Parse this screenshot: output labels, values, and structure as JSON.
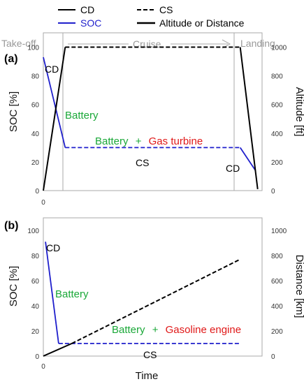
{
  "legend": {
    "cd": "CD",
    "cs": "CS",
    "soc": "SOC",
    "alt": "Altitude or Distance"
  },
  "phases": {
    "takeoff": "Take-off",
    "cruise": "Cruise",
    "landing": "Landing"
  },
  "colors": {
    "soc": "#1f1fcc",
    "altitude": "#000000",
    "battery_text": "#1aa838",
    "fuel_text": "#e01818",
    "phase_text": "#999999"
  },
  "chart_data": [
    {
      "panel": "(a)",
      "type": "line",
      "xlabel": "",
      "ylabel": "SOC [%]",
      "y2label": "Altitude [ft]",
      "xticks": [
        "0"
      ],
      "ylim": [
        0,
        110
      ],
      "yticks": [
        0,
        20,
        40,
        60,
        80,
        100
      ],
      "y2lim": [
        0,
        1100
      ],
      "y2ticks": [
        0,
        200,
        400,
        600,
        800,
        1000
      ],
      "grid": false,
      "series": [
        {
          "name": "SOC",
          "axis": "left",
          "style": "solid",
          "color": "#1f1fcc",
          "x": [
            0.0,
            0.1
          ],
          "y": [
            93,
            30
          ]
        },
        {
          "name": "SOC",
          "axis": "left",
          "style": "dashed",
          "color": "#1f1fcc",
          "x": [
            0.1,
            0.9
          ],
          "y": [
            30,
            30
          ]
        },
        {
          "name": "SOC",
          "axis": "left",
          "style": "solid",
          "color": "#1f1fcc",
          "x": [
            0.9,
            0.97
          ],
          "y": [
            30,
            14
          ]
        },
        {
          "name": "Altitude or Distance",
          "axis": "right",
          "style": "solid",
          "color": "#000000",
          "x": [
            0.0,
            0.1
          ],
          "y": [
            0,
            1000
          ]
        },
        {
          "name": "Altitude or Distance",
          "axis": "right",
          "style": "dashed",
          "color": "#000000",
          "x": [
            0.1,
            0.9
          ],
          "y": [
            1000,
            1000
          ]
        },
        {
          "name": "Altitude or Distance",
          "axis": "right",
          "style": "solid",
          "color": "#000000",
          "x": [
            0.9,
            0.98
          ],
          "y": [
            1000,
            10
          ]
        }
      ],
      "annotations": {
        "cd1": "CD",
        "battery": "Battery",
        "battery2": "Battery",
        "plus": "+",
        "fuel": "Gas turbine",
        "cs": "CS",
        "cd2": "CD"
      }
    },
    {
      "panel": "(b)",
      "type": "line",
      "xlabel": "Time",
      "ylabel": "SOC [%]",
      "y2label": "Distance [km]",
      "xticks": [
        "0"
      ],
      "ylim": [
        0,
        110
      ],
      "yticks": [
        0,
        20,
        40,
        60,
        80,
        100
      ],
      "y2lim": [
        0,
        1100
      ],
      "y2ticks": [
        0,
        200,
        400,
        600,
        800,
        1000
      ],
      "grid": false,
      "series": [
        {
          "name": "SOC",
          "axis": "left",
          "style": "solid",
          "color": "#1f1fcc",
          "x": [
            0.01,
            0.07
          ],
          "y": [
            91,
            10
          ]
        },
        {
          "name": "SOC",
          "axis": "left",
          "style": "dashed",
          "color": "#1f1fcc",
          "x": [
            0.07,
            0.9
          ],
          "y": [
            10,
            10
          ]
        },
        {
          "name": "Altitude or Distance",
          "axis": "right",
          "style": "solid",
          "color": "#000000",
          "x": [
            0.0,
            0.13
          ],
          "y": [
            0,
            100
          ]
        },
        {
          "name": "Altitude or Distance",
          "axis": "right",
          "style": "dashed",
          "color": "#000000",
          "x": [
            0.13,
            0.9
          ],
          "y": [
            100,
            770
          ]
        }
      ],
      "annotations": {
        "cd": "CD",
        "battery": "Battery",
        "battery2": "Battery",
        "plus": "+",
        "fuel": "Gasoline engine",
        "cs": "CS"
      }
    }
  ]
}
